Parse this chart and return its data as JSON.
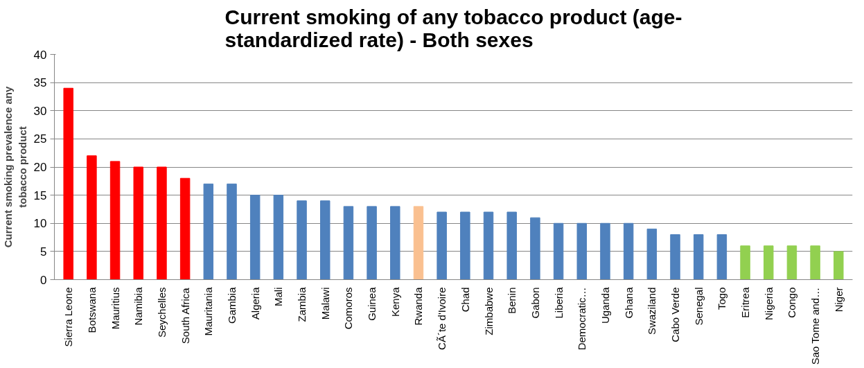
{
  "chart_data": {
    "type": "bar",
    "title": "Current smoking of any tobacco product (age-standardized rate) - Both sexes",
    "ylabel": "Current smoking prevalence any tobacco product",
    "categories": [
      "Sierra Leone",
      "Botswana",
      "Mauritius",
      "Namibia",
      "Seychelles",
      "South Africa",
      "Mauritania",
      "Gambia",
      "Algeria",
      "Mali",
      "Zambia",
      "Malawi",
      "Comoros",
      "Guinea",
      "Kenya",
      "Rwanda",
      "CÃ´te d'Ivoire",
      "Chad",
      "Zimbabwe",
      "Benin",
      "Gabon",
      "Liberia",
      "Democratic…",
      "Uganda",
      "Ghana",
      "Swaziland",
      "Cabo Verde",
      "Senegal",
      "Togo",
      "Eritrea",
      "Nigeria",
      "Congo",
      "Sao Tome and…",
      "Niger"
    ],
    "values": [
      34,
      22,
      21,
      20,
      20,
      18,
      17,
      17,
      15,
      15,
      14,
      14,
      13,
      13,
      13,
      13,
      12,
      12,
      12,
      12,
      11,
      10,
      10,
      10,
      10,
      9,
      8,
      8,
      8,
      6,
      6,
      6,
      6,
      5
    ],
    "colors": [
      "#ff0000",
      "#ff0000",
      "#ff0000",
      "#ff0000",
      "#ff0000",
      "#ff0000",
      "#4f81bd",
      "#4f81bd",
      "#4f81bd",
      "#4f81bd",
      "#4f81bd",
      "#4f81bd",
      "#4f81bd",
      "#4f81bd",
      "#4f81bd",
      "#fac090",
      "#4f81bd",
      "#4f81bd",
      "#4f81bd",
      "#4f81bd",
      "#4f81bd",
      "#4f81bd",
      "#4f81bd",
      "#4f81bd",
      "#4f81bd",
      "#4f81bd",
      "#4f81bd",
      "#4f81bd",
      "#4f81bd",
      "#92d050",
      "#92d050",
      "#92d050",
      "#92d050",
      "#92d050"
    ],
    "ylim": [
      0,
      40
    ],
    "yticks": [
      0,
      5,
      10,
      15,
      20,
      25,
      30,
      35,
      40
    ],
    "grid": "y"
  }
}
